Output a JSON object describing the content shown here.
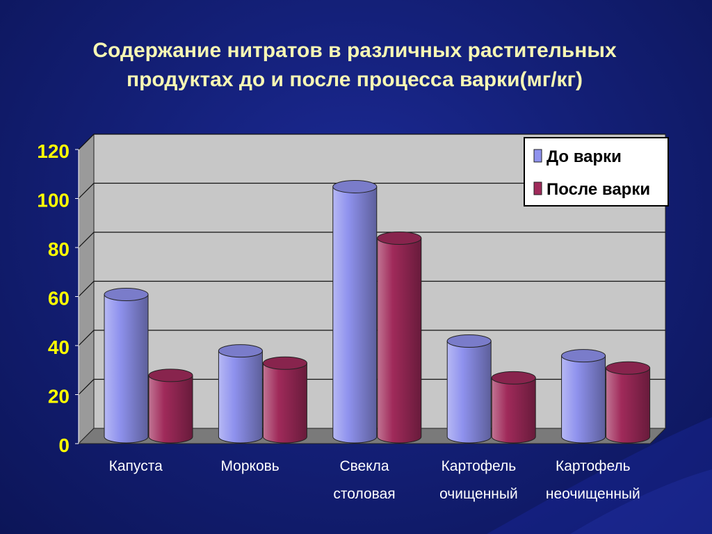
{
  "title": {
    "line1": "Содержание нитратов в различных растительных",
    "line2": "продуктах до и после процесса варки(мг/кг)"
  },
  "colors": {
    "before": "#8f92ee",
    "after": "#a02a5a",
    "wall": "#c7c7c7",
    "floor": "#7a7a7a",
    "tick_text": "#ffff00",
    "category_text": "#ffffff"
  },
  "chart_data": {
    "type": "bar",
    "title": "Содержание нитратов в различных растительных продуктах до и после процесса варки(мг/кг)",
    "categories": [
      [
        "Капуста"
      ],
      [
        "Морковь"
      ],
      [
        "Свекла",
        "столовая"
      ],
      [
        "Картофель",
        "очищенный"
      ],
      [
        "Картофель",
        "неочищенный"
      ]
    ],
    "series": [
      {
        "name": "До варки",
        "values": [
          58,
          35,
          102,
          39,
          33
        ]
      },
      {
        "name": "После варки",
        "values": [
          25,
          30,
          81,
          24,
          28
        ]
      }
    ],
    "ylim": [
      0,
      120
    ],
    "yticks": [
      "0",
      "20",
      "40",
      "60",
      "80",
      "100",
      "120"
    ],
    "legend_position": "top-right",
    "grid": true,
    "bar_shape": "cylinder-3d"
  }
}
